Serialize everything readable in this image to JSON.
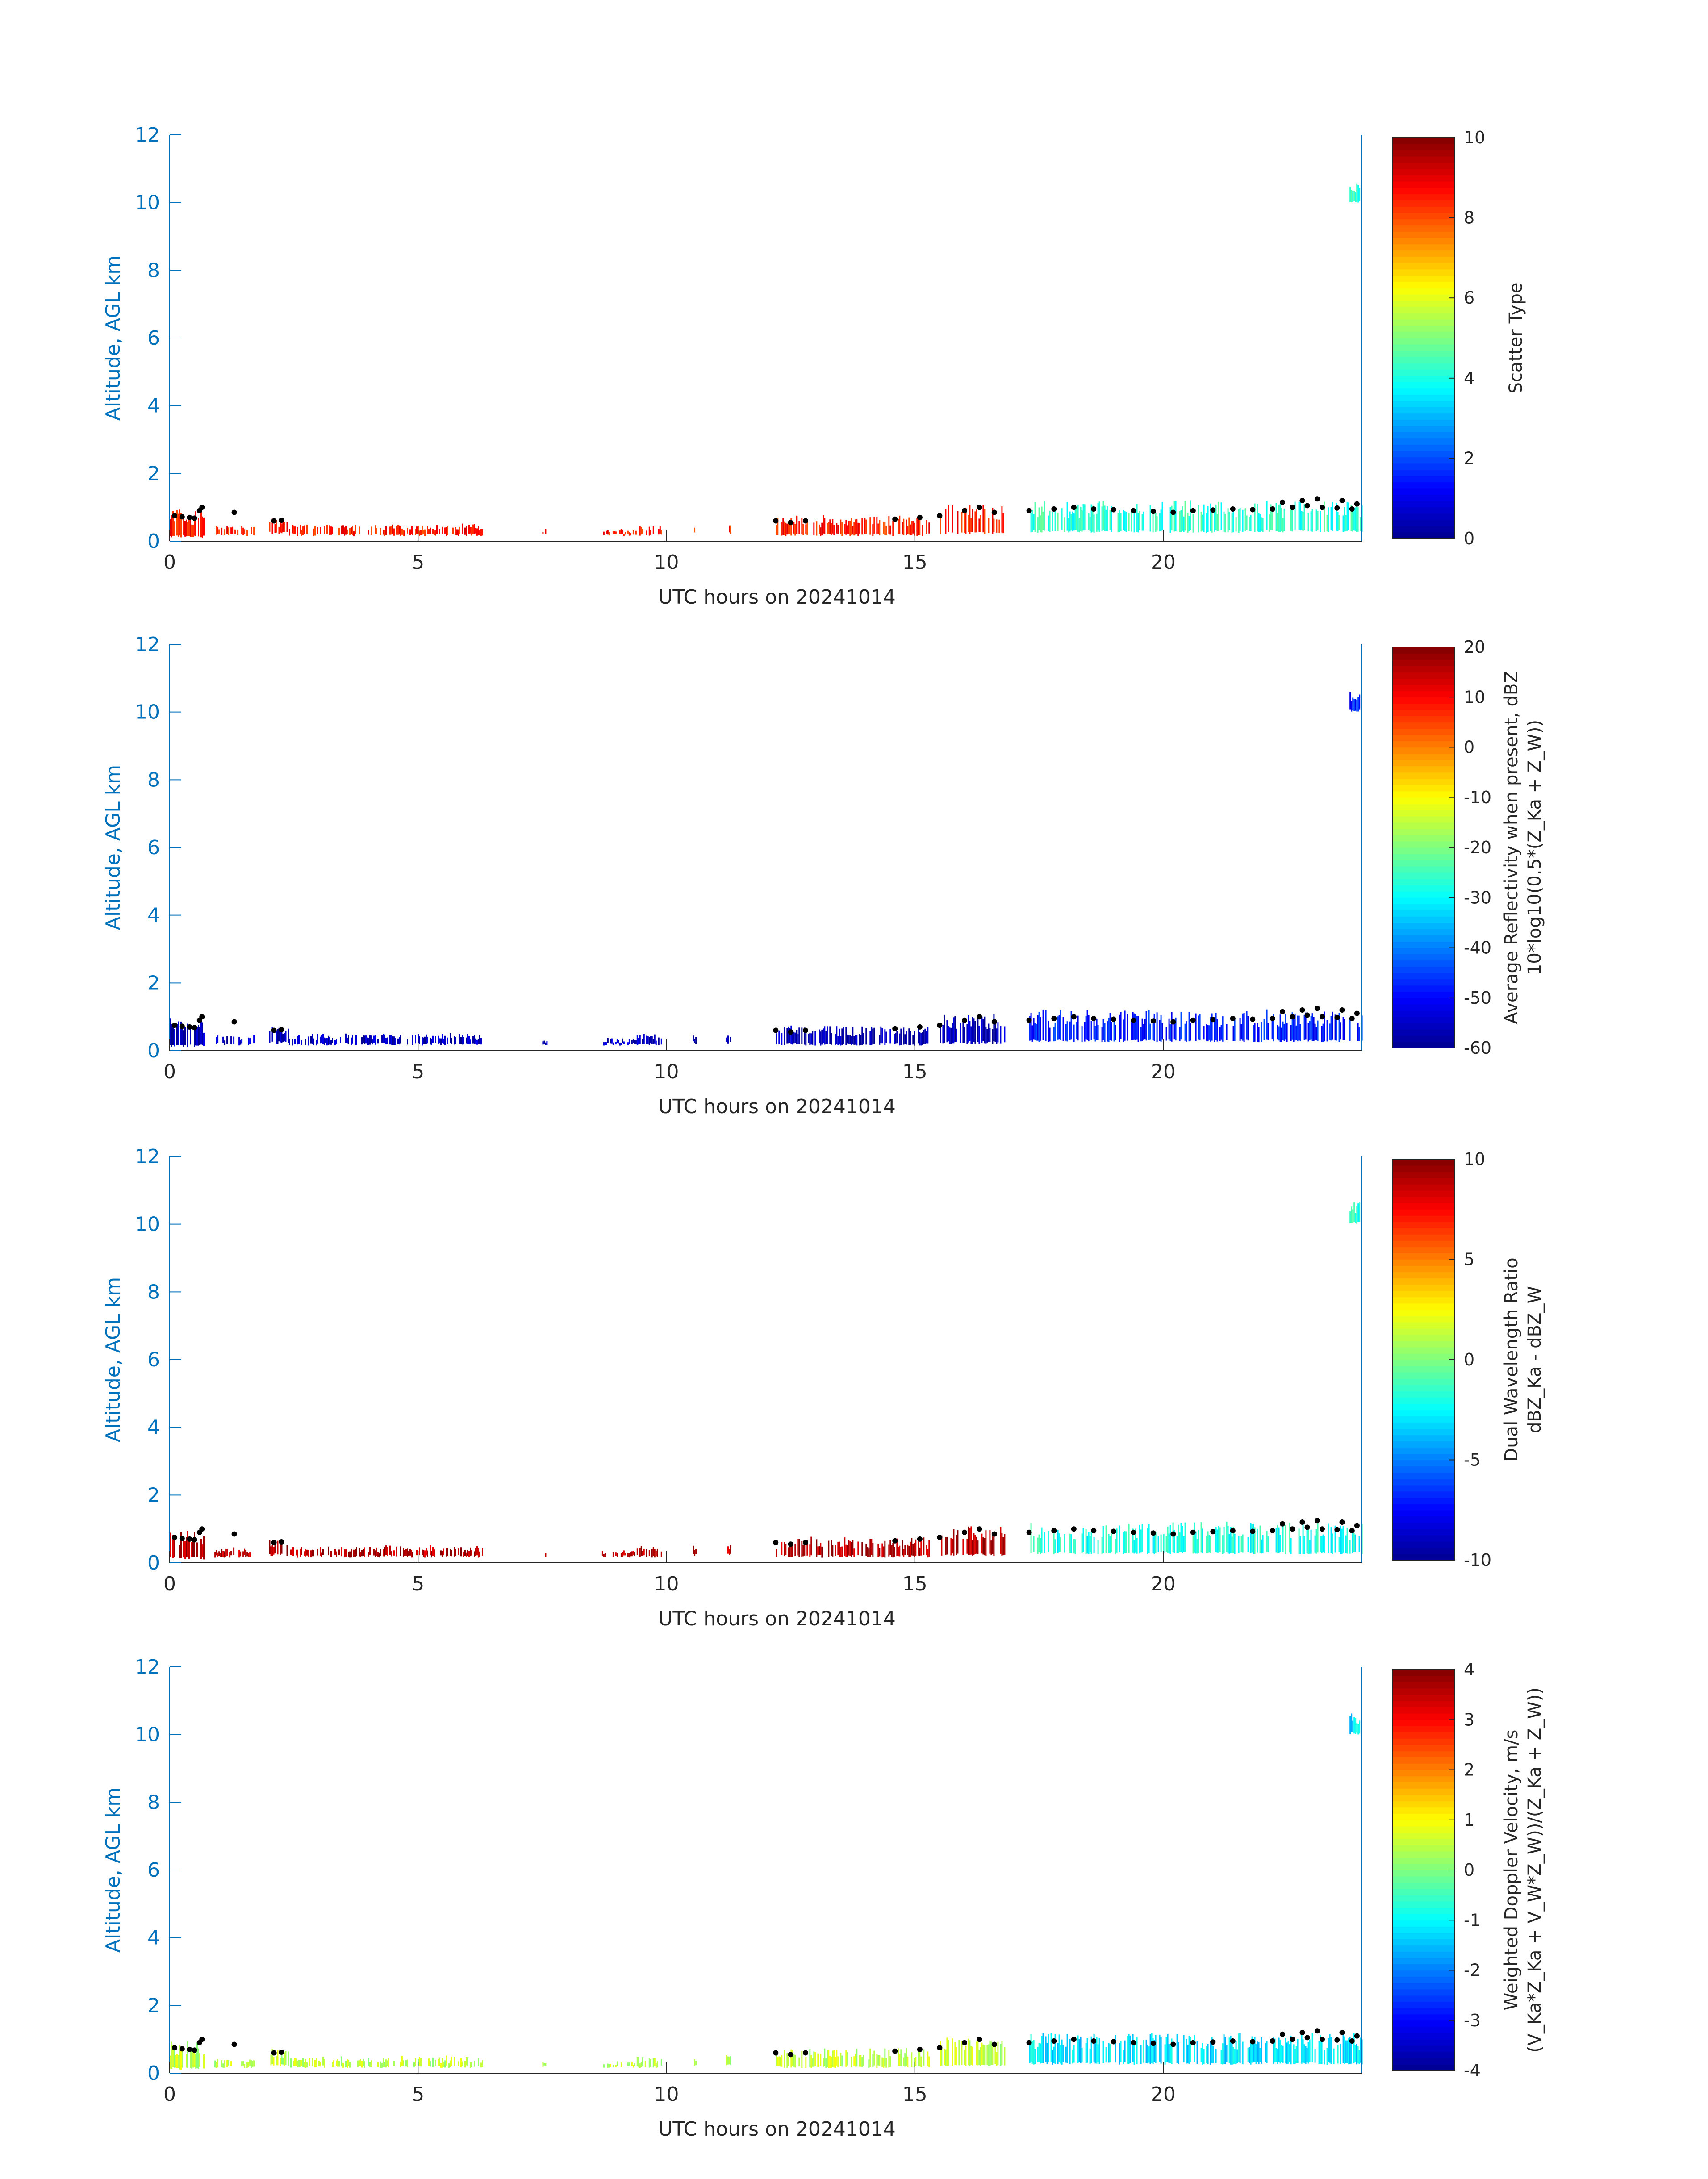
{
  "colors": {
    "axis_y": "#0072bd",
    "axis_x": "#262626",
    "marker": "#000000",
    "colormap": [
      "#00008f",
      "#0000ff",
      "#007fff",
      "#00ffff",
      "#7fff7f",
      "#ffff00",
      "#ff7f00",
      "#ff0000",
      "#800000"
    ]
  },
  "chart_data": [
    {
      "type": "heatmap",
      "name": "scatter-type",
      "xlabel": "UTC hours on 20241014",
      "ylabel": "Altitude, AGL km",
      "xlim": [
        0,
        24
      ],
      "ylim": [
        0,
        12
      ],
      "x_ticks": [
        "0",
        "5",
        "10",
        "15",
        "20"
      ],
      "y_ticks": [
        "0",
        "2",
        "4",
        "6",
        "8",
        "10",
        "12"
      ],
      "colorbar": {
        "label_lines": [
          "Scatter Type"
        ],
        "range": [
          0,
          10
        ],
        "ticks": [
          "0",
          "2",
          "4",
          "6",
          "8",
          "10"
        ]
      },
      "dominant_value_low_layer": 8.5,
      "dominant_value_cloud_layer": 4.2
    },
    {
      "type": "heatmap",
      "name": "average-reflectivity",
      "xlabel": "UTC hours on 20241014",
      "ylabel": "Altitude, AGL km",
      "xlim": [
        0,
        24
      ],
      "ylim": [
        0,
        12
      ],
      "x_ticks": [
        "0",
        "5",
        "10",
        "15",
        "20"
      ],
      "y_ticks": [
        "0",
        "2",
        "4",
        "6",
        "8",
        "10",
        "12"
      ],
      "colorbar": {
        "label_lines": [
          "Average Reflectivity when present, dBZ",
          "10*log10(0.5*(Z_Ka + Z_W))"
        ],
        "range": [
          -60,
          20
        ],
        "ticks": [
          "-60",
          "-50",
          "-40",
          "-30",
          "-20",
          "-10",
          "0",
          "10",
          "20"
        ]
      },
      "dominant_value_low_layer": -56,
      "dominant_value_cloud_layer": -48
    },
    {
      "type": "heatmap",
      "name": "dual-wavelength-ratio",
      "xlabel": "UTC hours on 20241014",
      "ylabel": "Altitude, AGL km",
      "xlim": [
        0,
        24
      ],
      "ylim": [
        0,
        12
      ],
      "x_ticks": [
        "0",
        "5",
        "10",
        "15",
        "20"
      ],
      "y_ticks": [
        "0",
        "2",
        "4",
        "6",
        "8",
        "10",
        "12"
      ],
      "colorbar": {
        "label_lines": [
          "Dual Wavelength Ratio",
          "dBZ_Ka - dBZ_W"
        ],
        "range": [
          -10,
          10
        ],
        "ticks": [
          "-10",
          "-5",
          "0",
          "5",
          "10"
        ]
      },
      "dominant_value_low_layer": 9,
      "dominant_value_cloud_layer": -2
    },
    {
      "type": "heatmap",
      "name": "weighted-doppler-velocity",
      "xlabel": "UTC hours on 20241014",
      "ylabel": "Altitude, AGL km",
      "xlim": [
        0,
        24
      ],
      "ylim": [
        0,
        12
      ],
      "x_ticks": [
        "0",
        "5",
        "10",
        "15",
        "20"
      ],
      "y_ticks": [
        "0",
        "2",
        "4",
        "6",
        "8",
        "10",
        "12"
      ],
      "colorbar": {
        "label_lines": [
          "Weighted Doppler Velocity, m/s",
          "(V_Ka*Z_Ka + V_W*Z_W))/(Z_Ka + Z_W))"
        ],
        "range": [
          -4,
          4
        ],
        "ticks": [
          "-4",
          "-3",
          "-2",
          "-1",
          "0",
          "1",
          "2",
          "3",
          "4"
        ]
      },
      "dominant_value_low_layer": 0.5,
      "dominant_value_cloud_layer": -1.2
    }
  ],
  "cloud_base_markers": [
    [
      0.1,
      0.75
    ],
    [
      0.25,
      0.72
    ],
    [
      0.4,
      0.7
    ],
    [
      0.5,
      0.68
    ],
    [
      0.6,
      0.9
    ],
    [
      0.65,
      1.0
    ],
    [
      1.3,
      0.85
    ],
    [
      2.1,
      0.6
    ],
    [
      2.25,
      0.62
    ],
    [
      12.2,
      0.6
    ],
    [
      12.5,
      0.55
    ],
    [
      12.8,
      0.6
    ],
    [
      14.6,
      0.65
    ],
    [
      15.1,
      0.7
    ],
    [
      15.5,
      0.75
    ],
    [
      16.0,
      0.9
    ],
    [
      16.3,
      1.0
    ],
    [
      16.6,
      0.85
    ],
    [
      17.3,
      0.9
    ],
    [
      17.8,
      0.95
    ],
    [
      18.2,
      1.0
    ],
    [
      18.6,
      0.95
    ],
    [
      19.0,
      0.93
    ],
    [
      19.4,
      0.9
    ],
    [
      19.8,
      0.88
    ],
    [
      20.2,
      0.85
    ],
    [
      20.6,
      0.9
    ],
    [
      21.0,
      0.92
    ],
    [
      21.4,
      0.95
    ],
    [
      21.8,
      0.93
    ],
    [
      22.2,
      0.95
    ],
    [
      22.6,
      1.0
    ],
    [
      22.9,
      1.05
    ],
    [
      23.2,
      1.0
    ],
    [
      23.5,
      0.98
    ],
    [
      23.8,
      0.95
    ],
    [
      22.4,
      1.15
    ],
    [
      22.8,
      1.2
    ],
    [
      23.1,
      1.25
    ],
    [
      23.6,
      1.2
    ],
    [
      23.9,
      1.1
    ]
  ],
  "echo_segments": [
    {
      "x0": 0.0,
      "x1": 0.7,
      "ymin": 0.1,
      "ymax": 0.9
    },
    {
      "x0": 0.9,
      "x1": 1.7,
      "ymin": 0.15,
      "ymax": 0.4
    },
    {
      "x0": 2.0,
      "x1": 2.4,
      "ymin": 0.2,
      "ymax": 0.65
    },
    {
      "x0": 2.4,
      "x1": 6.3,
      "ymin": 0.15,
      "ymax": 0.45
    },
    {
      "x0": 7.5,
      "x1": 7.6,
      "ymin": 0.15,
      "ymax": 0.3
    },
    {
      "x0": 8.7,
      "x1": 9.4,
      "ymin": 0.15,
      "ymax": 0.3
    },
    {
      "x0": 9.4,
      "x1": 9.9,
      "ymin": 0.15,
      "ymax": 0.45
    },
    {
      "x0": 10.5,
      "x1": 10.6,
      "ymin": 0.2,
      "ymax": 0.45
    },
    {
      "x0": 11.2,
      "x1": 11.3,
      "ymin": 0.2,
      "ymax": 0.5
    },
    {
      "x0": 12.2,
      "x1": 15.3,
      "ymin": 0.15,
      "ymax": 0.7
    },
    {
      "x0": 15.5,
      "x1": 16.8,
      "ymin": 0.2,
      "ymax": 1.05
    },
    {
      "x0": 17.3,
      "x1": 24.0,
      "ymin": 0.25,
      "ymax": 1.15
    },
    {
      "x0": 23.75,
      "x1": 23.95,
      "ymin": 10.0,
      "ymax": 10.6
    }
  ]
}
